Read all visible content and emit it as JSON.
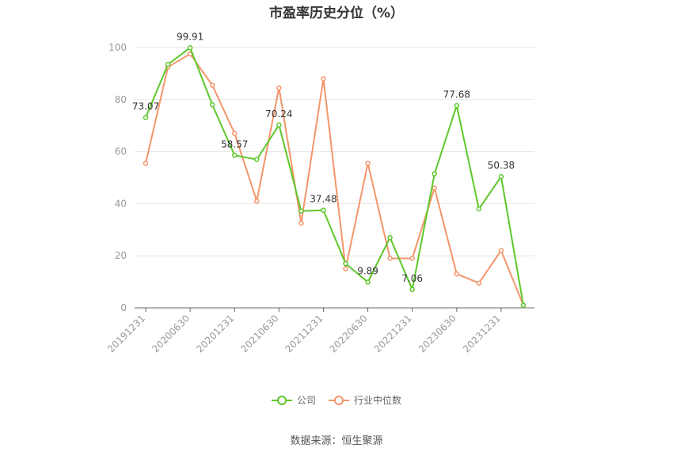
{
  "chart_data": {
    "type": "line",
    "title": "市盈率历史分位（%）",
    "xlabel": "",
    "ylabel": "",
    "ylim": [
      0,
      100
    ],
    "yticks": [
      0,
      20,
      40,
      60,
      80,
      100
    ],
    "x_tick_labels": [
      "20191231",
      "20200630",
      "20201231",
      "20210630",
      "20211231",
      "20220630",
      "20221231",
      "20230630",
      "20231231"
    ],
    "x": [
      "20191231",
      "20200331",
      "20200630",
      "20200930",
      "20201231",
      "20210331",
      "20210630",
      "20210930",
      "20211231",
      "20220331",
      "20220630",
      "20220930",
      "20221231",
      "20230331",
      "20230630",
      "20230930",
      "20231231",
      "20240331"
    ],
    "grid": true,
    "legend_position": "bottom",
    "series": [
      {
        "name": "公司",
        "color": "#5dc82a",
        "values": [
          73.07,
          93.5,
          99.91,
          78,
          58.57,
          57,
          70.24,
          37.2,
          37.48,
          17,
          9.89,
          27,
          7.06,
          51.5,
          77.68,
          38,
          50.38,
          1
        ],
        "labels": [
          {
            "index": 0,
            "text": "73.07"
          },
          {
            "index": 2,
            "text": "99.91"
          },
          {
            "index": 4,
            "text": "58.57"
          },
          {
            "index": 6,
            "text": "70.24"
          },
          {
            "index": 8,
            "text": "37.48"
          },
          {
            "index": 10,
            "text": "9.89"
          },
          {
            "index": 12,
            "text": "7.06"
          },
          {
            "index": 14,
            "text": "77.68"
          },
          {
            "index": 16,
            "text": "50.38"
          }
        ]
      },
      {
        "name": "行业中位数",
        "color": "#f4956a",
        "values": [
          55.5,
          92.5,
          97.5,
          85.5,
          67,
          41,
          84.5,
          32.5,
          88,
          15,
          55.5,
          19,
          19,
          46,
          13,
          9.5,
          22,
          1
        ]
      }
    ]
  },
  "source_text": "数据来源：恒生聚源"
}
